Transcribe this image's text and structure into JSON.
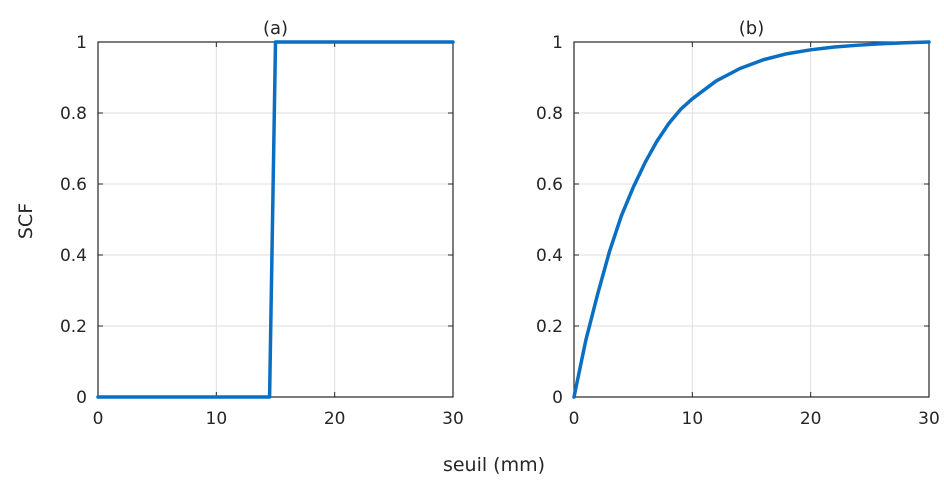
{
  "figure": {
    "xlabel": "seuil (mm)",
    "ylabel": "SCF"
  },
  "colors": {
    "line": "#0a6fc2",
    "grid": "#dedede",
    "axis": "#262626"
  },
  "chart_data": [
    {
      "type": "line",
      "title": "(a)",
      "xlabel": "seuil (mm)",
      "ylabel": "SCF",
      "xlim": [
        0,
        30
      ],
      "ylim": [
        0,
        1
      ],
      "xticks": [
        "0",
        "10",
        "20",
        "30"
      ],
      "yticks": [
        "0",
        "0.2",
        "0.4",
        "0.6",
        "0.8",
        "1"
      ],
      "grid": true,
      "series": [
        {
          "x": [
            0,
            14.5,
            15.0,
            30
          ],
          "y": [
            0,
            0,
            1,
            1
          ]
        }
      ]
    },
    {
      "type": "line",
      "title": "(b)",
      "xlabel": "seuil (mm)",
      "ylabel": "",
      "xlim": [
        0,
        30
      ],
      "ylim": [
        0,
        1
      ],
      "xticks": [
        "0",
        "10",
        "20",
        "30"
      ],
      "yticks": [
        "0",
        "0.2",
        "0.4",
        "0.6",
        "0.8",
        "1"
      ],
      "grid": true,
      "series": [
        {
          "x": [
            0,
            1,
            2,
            3,
            4,
            5,
            6,
            7,
            8,
            9,
            10,
            12,
            14,
            16,
            18,
            20,
            22,
            24,
            26,
            28,
            30
          ],
          "y": [
            0,
            0.16,
            0.29,
            0.41,
            0.51,
            0.59,
            0.66,
            0.72,
            0.77,
            0.81,
            0.84,
            0.89,
            0.925,
            0.95,
            0.967,
            0.978,
            0.986,
            0.991,
            0.995,
            0.998,
            1.0
          ]
        }
      ]
    }
  ]
}
